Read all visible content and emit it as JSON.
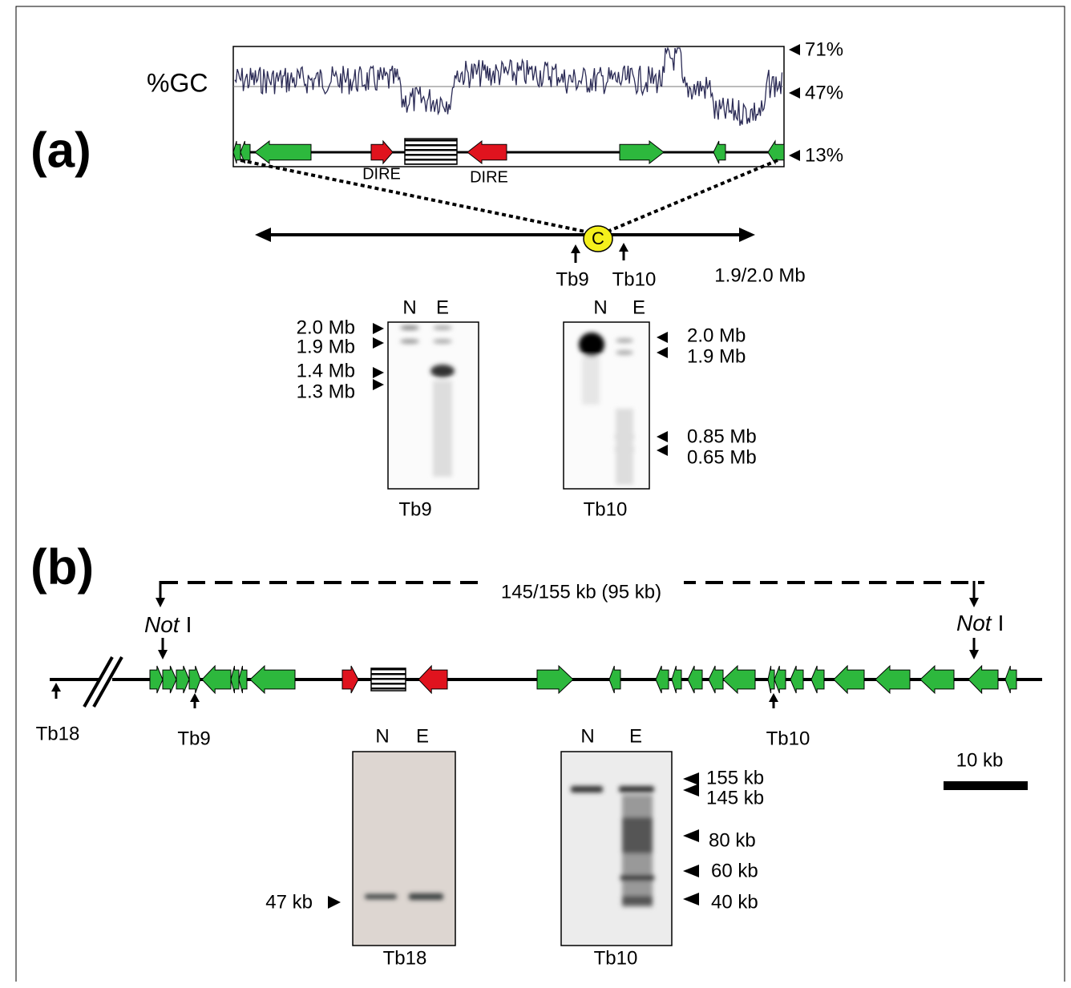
{
  "panel_a": {
    "label": "(a)",
    "gc_label": "%GC",
    "gc_ticks": [
      "71%",
      "47%",
      "13%"
    ],
    "dire_labels": [
      "DIRE",
      "DIRE"
    ],
    "centromere": "C",
    "probes": [
      "Tb9",
      "Tb10"
    ],
    "chromosome_size": "1.9/2.0 Mb",
    "blots": [
      {
        "lanes": [
          "N",
          "E"
        ],
        "markers": [
          "2.0 Mb",
          "1.9 Mb",
          "1.4 Mb",
          "1.3 Mb"
        ],
        "probe": "Tb9"
      },
      {
        "lanes": [
          "N",
          "E"
        ],
        "markers": [
          "2.0 Mb",
          "1.9 Mb",
          "0.85 Mb",
          "0.65 Mb"
        ],
        "probe": "Tb10"
      }
    ]
  },
  "panel_b": {
    "label": "(b)",
    "fragment": "145/155 kb (95 kb)",
    "not_sites": [
      {
        "italic": "Not",
        "roman": "I"
      },
      {
        "italic": "Not",
        "roman": "I"
      }
    ],
    "probes": [
      "Tb18",
      "Tb9",
      "Tb10"
    ],
    "scale_bar": "10 kb",
    "blots": [
      {
        "lanes": [
          "N",
          "E"
        ],
        "markers": [
          "47 kb"
        ],
        "probe": "Tb18"
      },
      {
        "lanes": [
          "N",
          "E"
        ],
        "markers": [
          "155 kb",
          "145 kb",
          "80 kb",
          "60 kb",
          "40 kb"
        ],
        "probe": "Tb10"
      }
    ]
  }
}
